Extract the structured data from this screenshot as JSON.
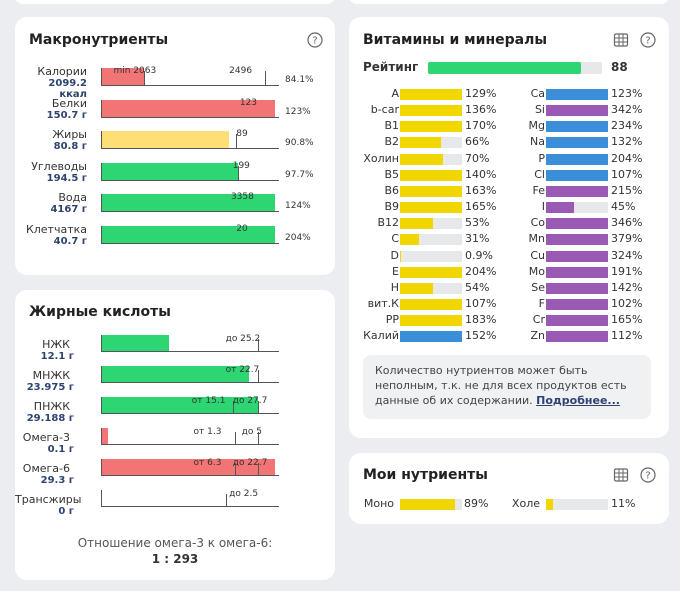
{
  "colors": {
    "green": "#2ed573",
    "red": "#f27474",
    "yellow": "#fddf76",
    "vit_yellow": "#f2d600",
    "blue": "#3b8fd9",
    "purple": "#9b59b6"
  },
  "macro": {
    "title": "Макронутриенты",
    "rows": [
      {
        "label": "Калории",
        "value": "2099.2",
        "unit": "ккал",
        "fill": 0.24,
        "color": "red",
        "texts": [
          {
            "t": "min 2063",
            "at": 0.07
          },
          {
            "t": "2496",
            "at": 0.72
          }
        ],
        "ticks": [
          0.24,
          0.92
        ],
        "pct": "84.1%"
      },
      {
        "label": "Белки",
        "value": "150.7 г",
        "fill": 0.98,
        "color": "red",
        "texts": [
          {
            "t": "123",
            "at": 0.78
          }
        ],
        "ticks": [],
        "pct": "123%"
      },
      {
        "label": "Жиры",
        "value": "80.8 г",
        "fill": 0.72,
        "color": "yellow",
        "texts": [
          {
            "t": "89",
            "at": 0.76
          }
        ],
        "ticks": [
          0.76
        ],
        "pct": "90.8%"
      },
      {
        "label": "Углеводы",
        "value": "194.5 г",
        "fill": 0.77,
        "color": "green",
        "texts": [
          {
            "t": "199",
            "at": 0.74
          }
        ],
        "ticks": [
          0.77
        ],
        "pct": "97.7%"
      },
      {
        "label": "Вода",
        "value": "4167 г",
        "fill": 0.98,
        "color": "green",
        "texts": [
          {
            "t": "3358",
            "at": 0.73
          }
        ],
        "ticks": [],
        "pct": "124%"
      },
      {
        "label": "Клетчатка",
        "value": "40.7 г",
        "fill": 0.98,
        "color": "green",
        "texts": [
          {
            "t": "20",
            "at": 0.76
          }
        ],
        "ticks": [],
        "pct": "204%"
      }
    ]
  },
  "fatty": {
    "title": "Жирные кислоты",
    "rows": [
      {
        "label": "НЖК",
        "value": "12.1 г",
        "fill": 0.38,
        "color": "green",
        "texts": [
          {
            "t": "до 25.2",
            "at": 0.7
          }
        ],
        "ticks": [
          0.88
        ]
      },
      {
        "label": "МНЖК",
        "value": "23.975 г",
        "fill": 0.83,
        "color": "green",
        "texts": [
          {
            "t": "от 22.7",
            "at": 0.7
          }
        ],
        "ticks": [
          0.88
        ]
      },
      {
        "label": "ПНЖК",
        "value": "29.188 г",
        "fill": 0.88,
        "color": "green",
        "texts": [
          {
            "t": "от 15.1",
            "at": 0.51
          },
          {
            "t": "до 27.7",
            "at": 0.74
          }
        ],
        "ticks": [
          0.74,
          0.88
        ]
      },
      {
        "label": "Омега-3",
        "value": "0.1 г",
        "fill": 0.04,
        "color": "red",
        "texts": [
          {
            "t": "от 1.3",
            "at": 0.52
          },
          {
            "t": "до 5",
            "at": 0.79
          }
        ],
        "ticks": [
          0.75,
          0.88
        ]
      },
      {
        "label": "Омега-6",
        "value": "29.3 г",
        "fill": 0.98,
        "color": "red",
        "texts": [
          {
            "t": "от 6.3",
            "at": 0.52
          },
          {
            "t": "до 22.7",
            "at": 0.74
          }
        ],
        "ticks": [
          0.75,
          0.88
        ]
      },
      {
        "label": "Трансжиры",
        "value": "0 г",
        "fill": 0,
        "color": "green",
        "texts": [
          {
            "t": "до 2.5",
            "at": 0.72
          }
        ],
        "ticks": [
          0.7
        ]
      }
    ],
    "ratio_label": "Отношение омега-3 к омега-6:",
    "ratio_value": "1 : 293"
  },
  "vitamins": {
    "title": "Витамины и минералы",
    "rating_label": "Рейтинг",
    "rating_value": "88",
    "rating_fill": 0.88,
    "left": [
      {
        "n": "A",
        "p": "129%",
        "f": 1,
        "c": "vit_yellow"
      },
      {
        "n": "b-car",
        "p": "136%",
        "f": 1,
        "c": "vit_yellow"
      },
      {
        "n": "B1",
        "p": "170%",
        "f": 1,
        "c": "vit_yellow"
      },
      {
        "n": "B2",
        "p": "66%",
        "f": 0.66,
        "c": "vit_yellow"
      },
      {
        "n": "Холин",
        "p": "70%",
        "f": 0.7,
        "c": "vit_yellow"
      },
      {
        "n": "B5",
        "p": "140%",
        "f": 1,
        "c": "vit_yellow"
      },
      {
        "n": "B6",
        "p": "163%",
        "f": 1,
        "c": "vit_yellow"
      },
      {
        "n": "B9",
        "p": "165%",
        "f": 1,
        "c": "vit_yellow"
      },
      {
        "n": "B12",
        "p": "53%",
        "f": 0.53,
        "c": "vit_yellow"
      },
      {
        "n": "C",
        "p": "31%",
        "f": 0.31,
        "c": "vit_yellow"
      },
      {
        "n": "D",
        "p": "0.9%",
        "f": 0.01,
        "c": "vit_yellow"
      },
      {
        "n": "E",
        "p": "204%",
        "f": 1,
        "c": "vit_yellow"
      },
      {
        "n": "H",
        "p": "54%",
        "f": 0.54,
        "c": "vit_yellow"
      },
      {
        "n": "вит.К",
        "p": "107%",
        "f": 1,
        "c": "vit_yellow"
      },
      {
        "n": "PP",
        "p": "183%",
        "f": 1,
        "c": "vit_yellow"
      },
      {
        "n": "Калий",
        "p": "152%",
        "f": 1,
        "c": "blue"
      }
    ],
    "right": [
      {
        "n": "Ca",
        "p": "123%",
        "f": 1,
        "c": "blue"
      },
      {
        "n": "Si",
        "p": "342%",
        "f": 1,
        "c": "purple"
      },
      {
        "n": "Mg",
        "p": "234%",
        "f": 1,
        "c": "blue"
      },
      {
        "n": "Na",
        "p": "132%",
        "f": 1,
        "c": "blue"
      },
      {
        "n": "P",
        "p": "204%",
        "f": 1,
        "c": "blue"
      },
      {
        "n": "Cl",
        "p": "107%",
        "f": 1,
        "c": "blue"
      },
      {
        "n": "Fe",
        "p": "215%",
        "f": 1,
        "c": "purple"
      },
      {
        "n": "I",
        "p": "45%",
        "f": 0.45,
        "c": "purple"
      },
      {
        "n": "Co",
        "p": "346%",
        "f": 1,
        "c": "purple"
      },
      {
        "n": "Mn",
        "p": "379%",
        "f": 1,
        "c": "purple"
      },
      {
        "n": "Cu",
        "p": "324%",
        "f": 1,
        "c": "purple"
      },
      {
        "n": "Mo",
        "p": "191%",
        "f": 1,
        "c": "purple"
      },
      {
        "n": "Se",
        "p": "142%",
        "f": 1,
        "c": "purple"
      },
      {
        "n": "F",
        "p": "102%",
        "f": 1,
        "c": "purple"
      },
      {
        "n": "Cr",
        "p": "165%",
        "f": 1,
        "c": "purple"
      },
      {
        "n": "Zn",
        "p": "112%",
        "f": 1,
        "c": "purple"
      }
    ],
    "note_text": "Количество нутриентов может быть неполным, т.к. не для всех продуктов есть данные об их содержании.",
    "note_link": "Подробнее..."
  },
  "mine": {
    "title": "Мои нутриенты",
    "items": [
      {
        "n": "Моно",
        "p": "89%",
        "f": 0.89,
        "c": "vit_yellow"
      },
      {
        "n": "Холе",
        "p": "11%",
        "f": 0.11,
        "c": "vit_yellow"
      }
    ]
  }
}
